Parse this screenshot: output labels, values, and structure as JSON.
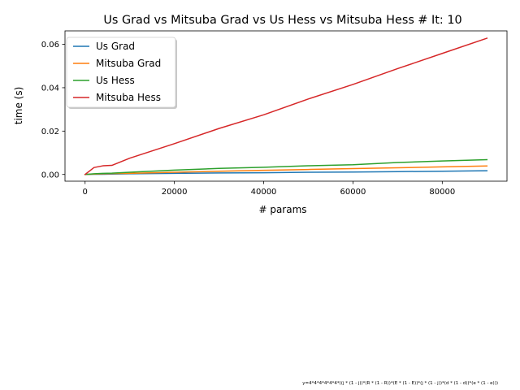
{
  "chart_data": {
    "type": "line",
    "title": "Us Grad vs Mitsuba Grad vs Us Hess vs Mitsuba Hess # It: 10",
    "xlabel": "# params",
    "ylabel": "time (s)",
    "xlim": [
      -4500,
      94500
    ],
    "ylim": [
      -0.0031,
      0.0662
    ],
    "x_ticks": [
      0,
      20000,
      40000,
      60000,
      80000
    ],
    "y_ticks": [
      0.0,
      0.02,
      0.04,
      0.06
    ],
    "x_tick_labels": [
      "0",
      "20000",
      "40000",
      "60000",
      "80000"
    ],
    "y_tick_labels": [
      "0.00",
      "0.02",
      "0.04",
      "0.06"
    ],
    "legend_position": "top-left",
    "grid": false,
    "series": [
      {
        "name": "Us Grad",
        "color": "#1f77b4",
        "x": [
          0,
          2000,
          4000,
          6000,
          10000,
          20000,
          30000,
          40000,
          50000,
          60000,
          70000,
          80000,
          90000
        ],
        "y": [
          0.0,
          0.0001,
          0.0001,
          0.0002,
          0.0003,
          0.0005,
          0.0007,
          0.0008,
          0.001,
          0.0011,
          0.0013,
          0.0015,
          0.0017
        ]
      },
      {
        "name": "Mitsuba Grad",
        "color": "#ff7f0e",
        "x": [
          0,
          2000,
          4000,
          6000,
          10000,
          20000,
          30000,
          40000,
          50000,
          60000,
          70000,
          80000,
          90000
        ],
        "y": [
          0.0,
          0.0002,
          0.0003,
          0.0004,
          0.0005,
          0.001,
          0.0015,
          0.0019,
          0.0023,
          0.0027,
          0.0031,
          0.0035,
          0.0039
        ]
      },
      {
        "name": "Us Hess",
        "color": "#2ca02c",
        "x": [
          0,
          2000,
          4000,
          6000,
          10000,
          20000,
          30000,
          40000,
          50000,
          60000,
          70000,
          80000,
          90000
        ],
        "y": [
          0.0,
          0.0003,
          0.0005,
          0.0006,
          0.001,
          0.002,
          0.0028,
          0.0033,
          0.004,
          0.0045,
          0.0055,
          0.0062,
          0.0068
        ]
      },
      {
        "name": "Mitsuba Hess",
        "color": "#d62728",
        "x": [
          0,
          2000,
          4000,
          6000,
          10000,
          20000,
          30000,
          40000,
          50000,
          60000,
          70000,
          80000,
          90000
        ],
        "y": [
          0.0,
          0.0032,
          0.004,
          0.0042,
          0.0075,
          0.0142,
          0.0212,
          0.0275,
          0.0348,
          0.0415,
          0.0488,
          0.0558,
          0.0628
        ]
      }
    ]
  },
  "footnote": "y=4*4*4*4*4*4*((j * (1 - j))*(R * (1 - R))*(E * (1 - E))*(j * (1 - j))*(d * (1 - d))*(e * (1 - e)))"
}
